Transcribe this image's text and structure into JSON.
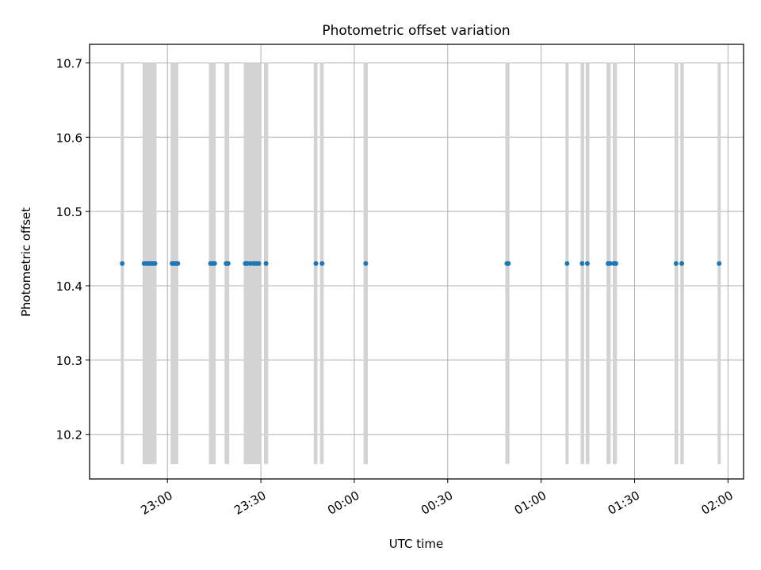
{
  "chart_data": {
    "type": "scatter",
    "title": "Photometric offset variation",
    "xlabel": "UTC time",
    "ylabel": "Photometric offset",
    "x_is_time": true,
    "xlim": [
      "22:35",
      "02:05"
    ],
    "ylim": [
      10.14,
      10.725
    ],
    "grid": true,
    "xticks": [
      "23:00",
      "23:30",
      "00:00",
      "00:30",
      "01:00",
      "01:30",
      "02:00"
    ],
    "yticks": [
      "10.2",
      "10.3",
      "10.4",
      "10.5",
      "10.6",
      "10.7"
    ],
    "shaded_intervals": {
      "y_range": [
        10.16,
        10.7
      ],
      "color": "#d3d3d3",
      "intervals": [
        [
          "22:45:00",
          "22:46:00"
        ],
        [
          "22:52:00",
          "22:56:30"
        ],
        [
          "23:01:00",
          "23:03:30"
        ],
        [
          "23:13:20",
          "23:15:30"
        ],
        [
          "23:18:20",
          "23:19:50"
        ],
        [
          "23:24:30",
          "23:30:00"
        ],
        [
          "23:31:00",
          "23:32:20"
        ],
        [
          "23:47:00",
          "23:48:10"
        ],
        [
          "23:49:00",
          "23:50:10"
        ],
        [
          "00:03:00",
          "00:04:20"
        ],
        [
          "00:48:30",
          "00:49:50"
        ],
        [
          "01:07:50",
          "01:08:50"
        ],
        [
          "01:12:40",
          "01:13:50"
        ],
        [
          "01:14:20",
          "01:15:30"
        ],
        [
          "01:21:00",
          "01:22:20"
        ],
        [
          "01:23:00",
          "01:24:20"
        ],
        [
          "01:42:50",
          "01:44:00"
        ],
        [
          "01:44:40",
          "01:45:50"
        ],
        [
          "01:56:40",
          "01:57:40"
        ]
      ]
    },
    "series": [
      {
        "color": "#1f77b4",
        "x": [
          "22:45:30",
          "22:52:30",
          "22:53:20",
          "22:54:00",
          "22:54:40",
          "22:55:20",
          "22:56:00",
          "23:01:30",
          "23:02:10",
          "23:02:50",
          "23:03:20",
          "23:13:50",
          "23:14:30",
          "23:15:10",
          "23:18:50",
          "23:19:30",
          "23:25:00",
          "23:25:40",
          "23:26:40",
          "23:27:40",
          "23:28:30",
          "23:29:20",
          "23:31:40",
          "23:47:40",
          "23:49:40",
          "00:03:40",
          "00:49:00",
          "00:49:30",
          "01:08:20",
          "01:13:10",
          "01:14:50",
          "01:21:30",
          "01:22:10",
          "01:23:20",
          "01:24:00",
          "01:43:20",
          "01:45:10",
          "01:57:10"
        ],
        "y": [
          10.43,
          10.43,
          10.43,
          10.43,
          10.43,
          10.43,
          10.43,
          10.43,
          10.43,
          10.43,
          10.43,
          10.43,
          10.43,
          10.43,
          10.43,
          10.43,
          10.43,
          10.43,
          10.43,
          10.43,
          10.43,
          10.43,
          10.43,
          10.43,
          10.43,
          10.43,
          10.43,
          10.43,
          10.43,
          10.43,
          10.43,
          10.43,
          10.43,
          10.43,
          10.43,
          10.43,
          10.43,
          10.43
        ]
      }
    ]
  }
}
